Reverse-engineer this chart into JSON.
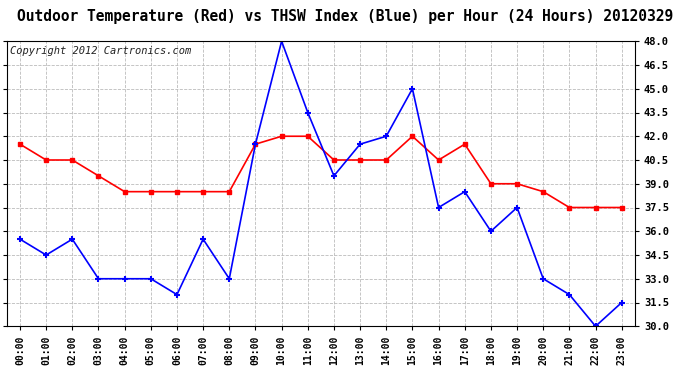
{
  "title": "Outdoor Temperature (Red) vs THSW Index (Blue) per Hour (24 Hours) 20120329",
  "copyright": "Copyright 2012 Cartronics.com",
  "hours": [
    "00:00",
    "01:00",
    "02:00",
    "03:00",
    "04:00",
    "05:00",
    "06:00",
    "07:00",
    "08:00",
    "09:00",
    "10:00",
    "11:00",
    "12:00",
    "13:00",
    "14:00",
    "15:00",
    "16:00",
    "17:00",
    "18:00",
    "19:00",
    "20:00",
    "21:00",
    "22:00",
    "23:00"
  ],
  "red_temp": [
    41.5,
    40.5,
    40.5,
    39.5,
    38.5,
    38.5,
    38.5,
    38.5,
    38.5,
    41.5,
    42.0,
    42.0,
    40.5,
    40.5,
    40.5,
    42.0,
    40.5,
    41.5,
    39.0,
    39.0,
    38.5,
    37.5,
    37.5,
    37.5
  ],
  "blue_thsw": [
    35.5,
    34.5,
    35.5,
    33.0,
    33.0,
    33.0,
    32.0,
    35.5,
    33.0,
    41.5,
    48.0,
    43.5,
    39.5,
    41.5,
    42.0,
    45.0,
    37.5,
    38.5,
    36.0,
    37.5,
    33.0,
    32.0,
    30.0,
    31.5
  ],
  "ylim": [
    30.0,
    48.0
  ],
  "yticks": [
    30.0,
    31.5,
    33.0,
    34.5,
    36.0,
    37.5,
    39.0,
    40.5,
    42.0,
    43.5,
    45.0,
    46.5,
    48.0
  ],
  "red_color": "#ff0000",
  "blue_color": "#0000ff",
  "bg_color": "#ffffff",
  "grid_color": "#bbbbbb",
  "title_color": "#000000",
  "title_fontsize": 10.5,
  "copyright_fontsize": 7.5
}
